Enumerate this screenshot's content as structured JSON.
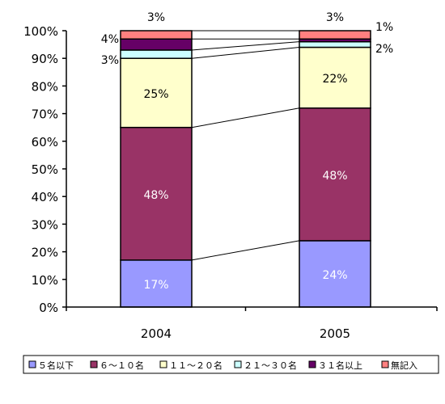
{
  "chart_data": {
    "type": "bar",
    "stacked": true,
    "percent": true,
    "title": "",
    "xlabel": "",
    "ylabel": "",
    "ylim": [
      0,
      100
    ],
    "yticks": [
      "0%",
      "10%",
      "20%",
      "30%",
      "40%",
      "50%",
      "60%",
      "70%",
      "80%",
      "90%",
      "100%"
    ],
    "categories": [
      "2004",
      "2005"
    ],
    "series": [
      {
        "name": "５名以下",
        "color": "#9999ff",
        "values": [
          17,
          24
        ],
        "labels": [
          "17%",
          "24%"
        ]
      },
      {
        "name": "６～１０名",
        "color": "#993366",
        "values": [
          48,
          48
        ],
        "labels": [
          "48%",
          "48%"
        ]
      },
      {
        "name": "１１～２０名",
        "color": "#ffffcc",
        "values": [
          25,
          22
        ],
        "labels": [
          "25%",
          "22%"
        ]
      },
      {
        "name": "２１～３０名",
        "color": "#ccffff",
        "values": [
          3,
          2
        ],
        "labels": [
          "3%",
          "2%"
        ]
      },
      {
        "name": "３１名以上",
        "color": "#660066",
        "values": [
          4,
          1
        ],
        "labels": [
          "4%",
          "1%"
        ]
      },
      {
        "name": "無記入",
        "color": "#ff8080",
        "values": [
          3,
          3
        ],
        "labels": [
          "3%",
          "3%"
        ]
      }
    ],
    "legend_position": "bottom",
    "grid": false,
    "series_lines": true
  }
}
